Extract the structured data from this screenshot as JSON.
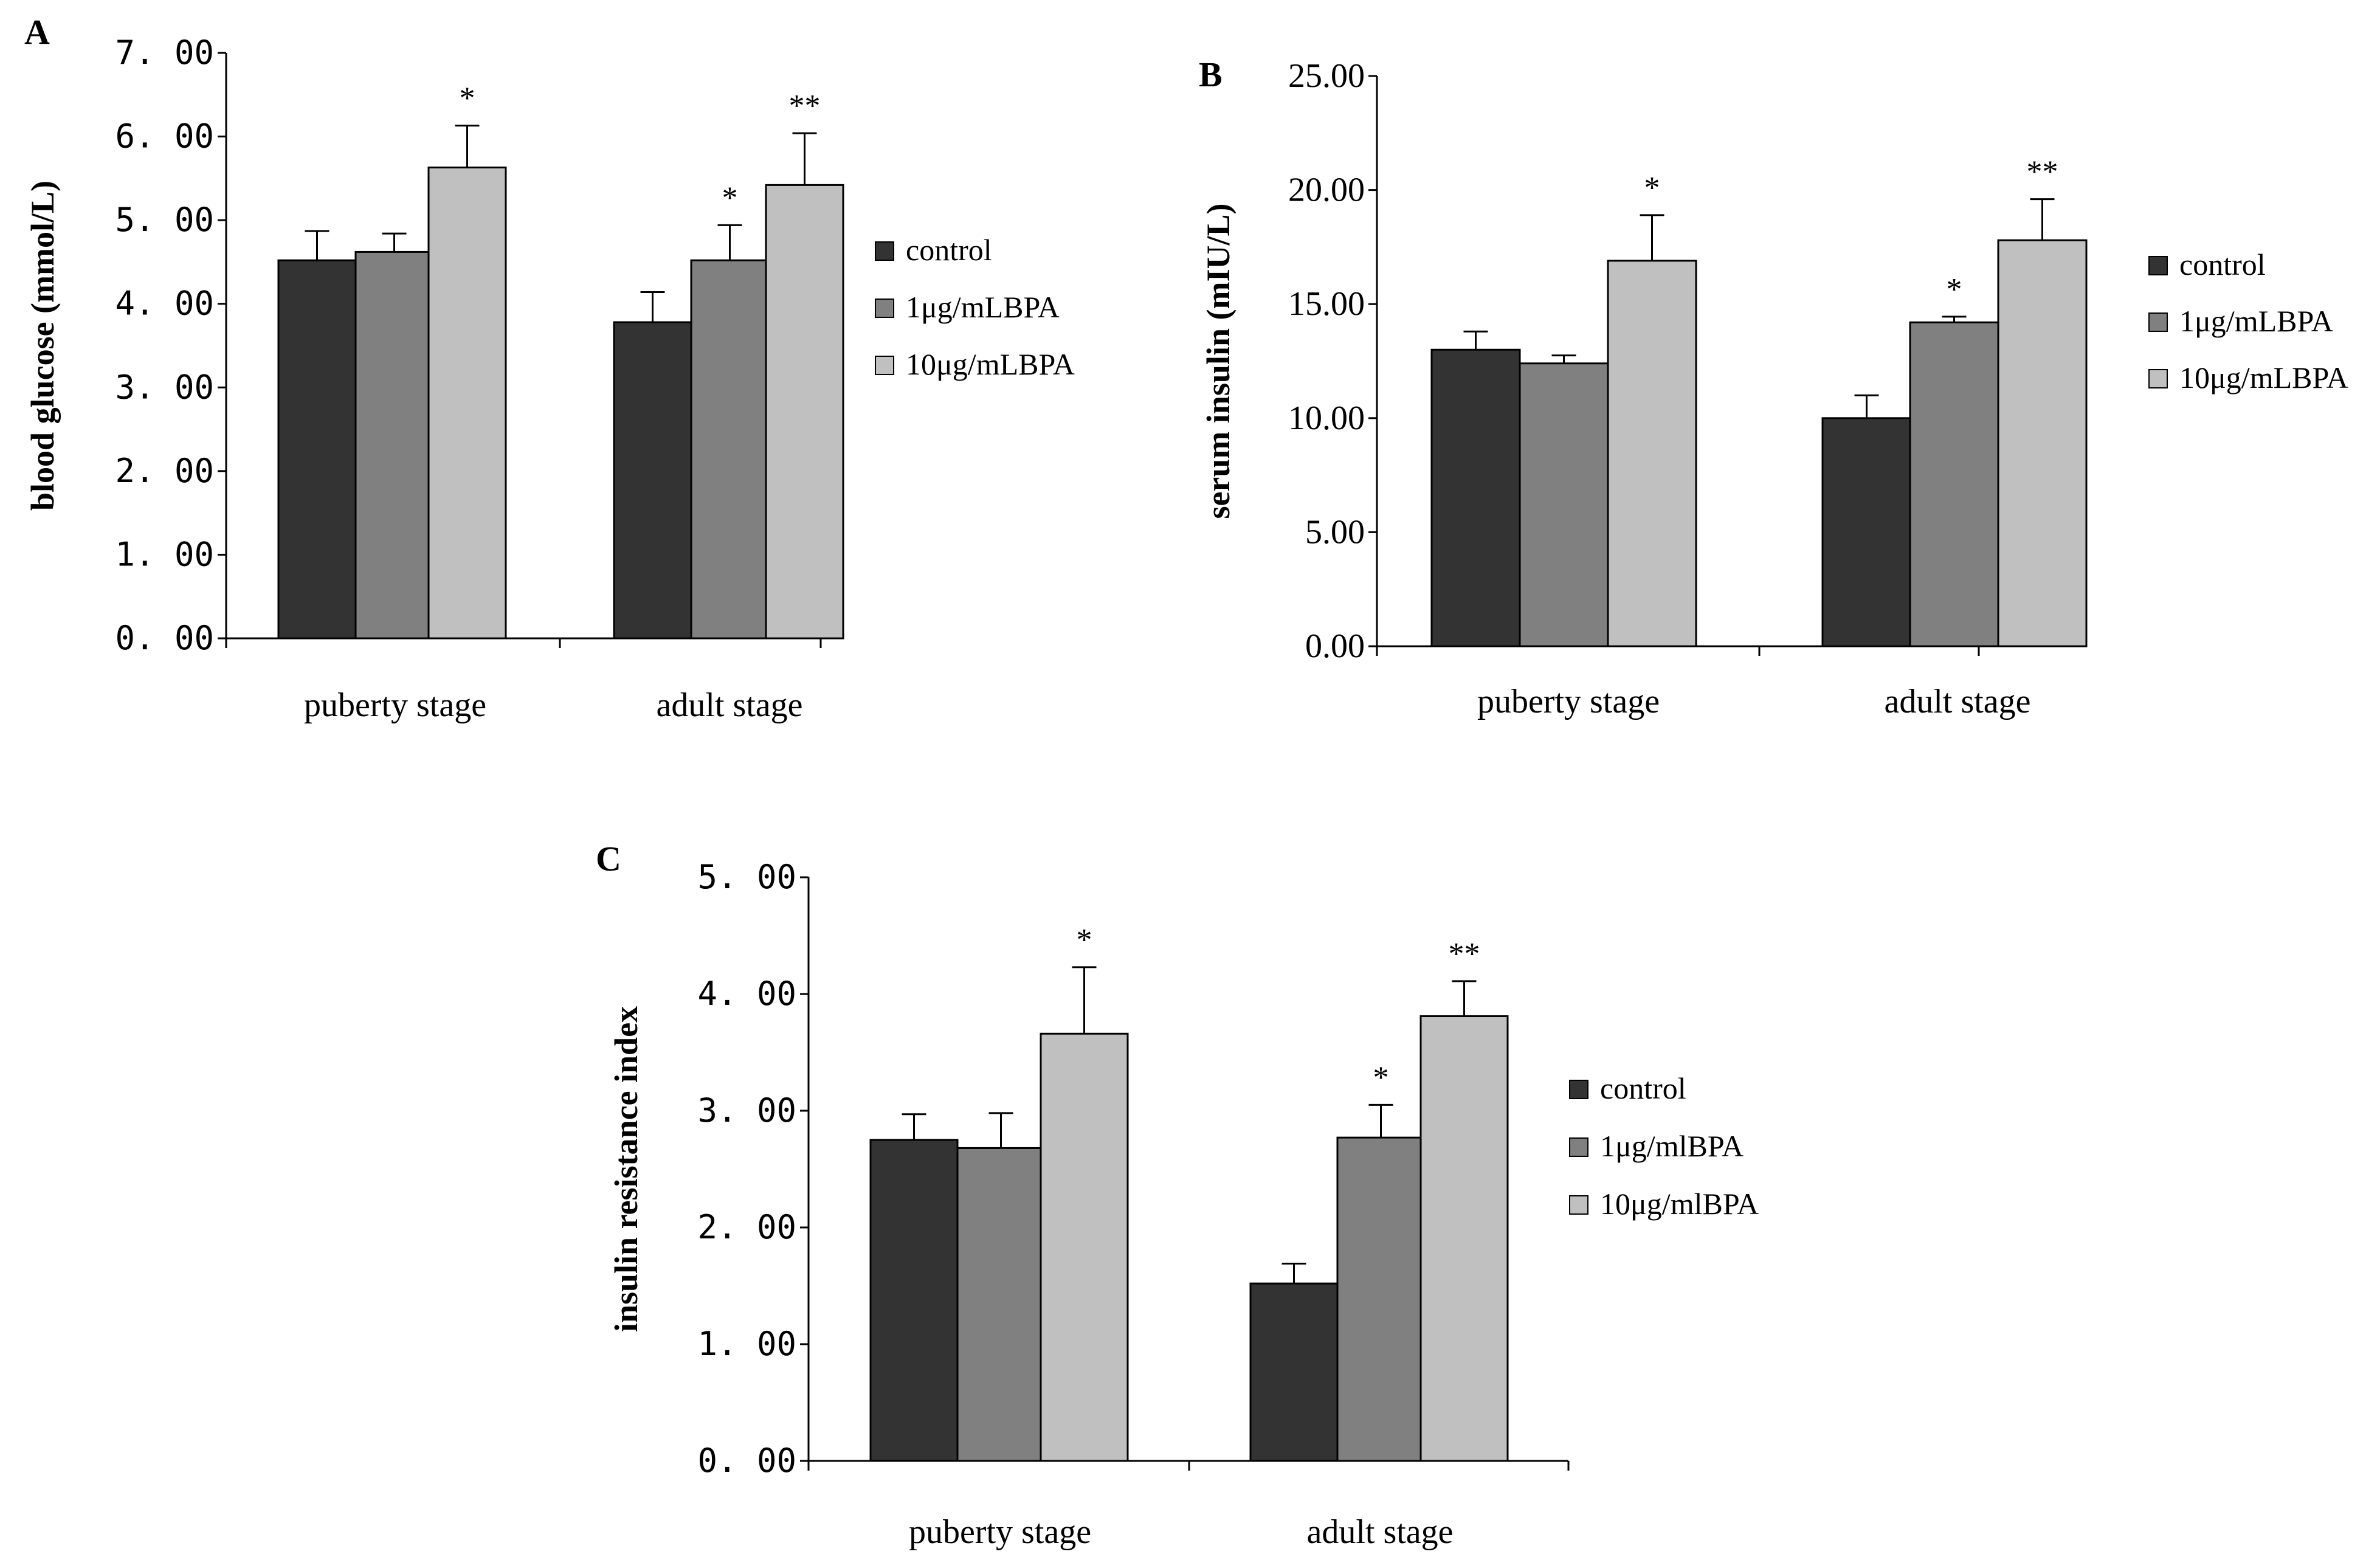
{
  "colors": {
    "control": "#333333",
    "low": "#808080",
    "high": "#c0c0c0",
    "edge": "#000000"
  },
  "chart_data": [
    {
      "panel": "A",
      "type": "bar",
      "ylabel": "blood glucose (mmol/L)",
      "ylim": [
        0,
        7
      ],
      "yticks": [
        "0. 00",
        "1. 00",
        "2. 00",
        "3. 00",
        "4. 00",
        "5. 00",
        "6. 00",
        "7. 00"
      ],
      "tick_style": "mono",
      "categories": [
        "puberty stage",
        "adult stage"
      ],
      "legend_position": "right",
      "series": [
        {
          "name": "control",
          "values": [
            4.52,
            3.78
          ],
          "errors": [
            0.35,
            0.36
          ],
          "sig": [
            "",
            ""
          ]
        },
        {
          "name": "1μg/mLBPA",
          "values": [
            4.62,
            4.52
          ],
          "errors": [
            0.22,
            0.42
          ],
          "sig": [
            "",
            "*"
          ]
        },
        {
          "name": "10μg/mLBPA",
          "values": [
            5.63,
            5.42
          ],
          "errors": [
            0.5,
            0.62
          ],
          "sig": [
            "*",
            "**"
          ]
        }
      ]
    },
    {
      "panel": "B",
      "type": "bar",
      "ylabel": "serum insulin (mIU/L)",
      "ylim": [
        0,
        25
      ],
      "yticks": [
        "0.00",
        "5.00",
        "10.00",
        "15.00",
        "20.00",
        "25.00"
      ],
      "tick_style": "serif",
      "categories": [
        "puberty stage",
        "adult stage"
      ],
      "legend_position": "right",
      "series": [
        {
          "name": "control",
          "values": [
            13.0,
            10.0
          ],
          "errors": [
            0.8,
            1.0
          ],
          "sig": [
            "",
            ""
          ]
        },
        {
          "name": "1μg/mLBPA",
          "values": [
            12.4,
            14.2
          ],
          "errors": [
            0.35,
            0.25
          ],
          "sig": [
            "",
            "*"
          ]
        },
        {
          "name": "10μg/mLBPA",
          "values": [
            16.9,
            17.8
          ],
          "errors": [
            2.0,
            1.8
          ],
          "sig": [
            "*",
            "**"
          ]
        }
      ]
    },
    {
      "panel": "C",
      "type": "bar",
      "ylabel": "insulin resistance index",
      "ylim": [
        0,
        5
      ],
      "yticks": [
        "0. 00",
        "1. 00",
        "2. 00",
        "3. 00",
        "4. 00",
        "5. 00"
      ],
      "tick_style": "mono",
      "categories": [
        "puberty stage",
        "adult stage"
      ],
      "legend_position": "right",
      "series": [
        {
          "name": "control",
          "values": [
            2.75,
            1.52
          ],
          "errors": [
            0.22,
            0.17
          ],
          "sig": [
            "",
            ""
          ]
        },
        {
          "name": "1μg/mlBPA",
          "values": [
            2.68,
            2.77
          ],
          "errors": [
            0.3,
            0.28
          ],
          "sig": [
            "",
            "*"
          ]
        },
        {
          "name": "10μg/mlBPA",
          "values": [
            3.66,
            3.81
          ],
          "errors": [
            0.57,
            0.3
          ],
          "sig": [
            "*",
            "**"
          ]
        }
      ]
    }
  ]
}
